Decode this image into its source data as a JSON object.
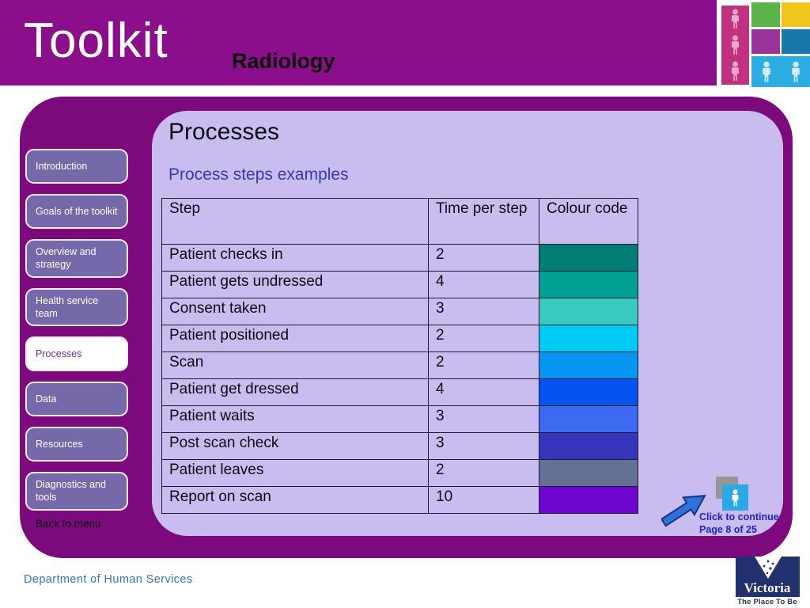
{
  "colors": {
    "header_bg": "#8B0E8B",
    "panel_bg": "#7D0A7D",
    "inner_bg": "#C9BDEF",
    "nav_bg": "#7669A9",
    "nav_selected_text": "#7030A0",
    "subtitle_color": "#3D35B8",
    "table_border": "#1C1C2E",
    "continue_text": "#2121CC",
    "arrow_fill": "#2E74D8",
    "arrow_stroke": "#16308C",
    "gray_sq": "#969696",
    "blue_sq": "#2BA9E6",
    "footer_text": "#3672BE",
    "victoria_navy": "#21316E"
  },
  "header": {
    "title": "Toolkit",
    "subtitle": "Radiology"
  },
  "logo_grid": {
    "tiles": [
      {
        "name": "magenta",
        "color": "#C23180"
      },
      {
        "name": "green",
        "color": "#5BB44A"
      },
      {
        "name": "yellow",
        "color": "#F2C51D"
      },
      {
        "name": "purple",
        "color": "#993299"
      },
      {
        "name": "steel-blue",
        "color": "#1878A8"
      },
      {
        "name": "light-blue",
        "color": "#2BACE2"
      }
    ],
    "person_pink": "#E9A9CB",
    "person_pale": "#D4ECF8"
  },
  "sidebar": {
    "items": [
      {
        "label": "Introduction",
        "selected": false
      },
      {
        "label": "Goals of the toolkit",
        "selected": false
      },
      {
        "label": "Overview and strategy",
        "selected": false
      },
      {
        "label": "Health service team",
        "selected": false
      },
      {
        "label": "Processes",
        "selected": true
      },
      {
        "label": "Data",
        "selected": false
      },
      {
        "label": "Resources",
        "selected": false
      },
      {
        "label": "Diagnostics and tools",
        "selected": false
      }
    ],
    "back_link": "Back to menu"
  },
  "main": {
    "title": "Processes",
    "subtitle": "Process steps examples",
    "table": {
      "columns": [
        "Step",
        "Time per step",
        "Colour code"
      ],
      "rows": [
        {
          "step": "Patient checks in",
          "time": "2",
          "color": "#007E76"
        },
        {
          "step": "Patient gets undressed",
          "time": "4",
          "color": "#00A094"
        },
        {
          "step": "Consent taken",
          "time": "3",
          "color": "#39C9C1"
        },
        {
          "step": "Patient positioned",
          "time": "2",
          "color": "#00CBF4"
        },
        {
          "step": "Scan",
          "time": "2",
          "color": "#0795F2"
        },
        {
          "step": "Patient get dressed",
          "time": "4",
          "color": "#0653F0"
        },
        {
          "step": "Patient waits",
          "time": "3",
          "color": "#3E6AF2"
        },
        {
          "step": "Post scan check",
          "time": "3",
          "color": "#3534BB"
        },
        {
          "step": "Patient leaves",
          "time": "2",
          "color": "#667095"
        },
        {
          "step": "Report on scan",
          "time": "10",
          "color": "#6E04CE"
        }
      ]
    },
    "continue": {
      "line1": "Click to continue",
      "line2": "Page 8 of 25"
    }
  },
  "footer": {
    "department": "Department of Human Services",
    "victoria": {
      "name": "Victoria",
      "tagline": "The Place To Be"
    }
  }
}
